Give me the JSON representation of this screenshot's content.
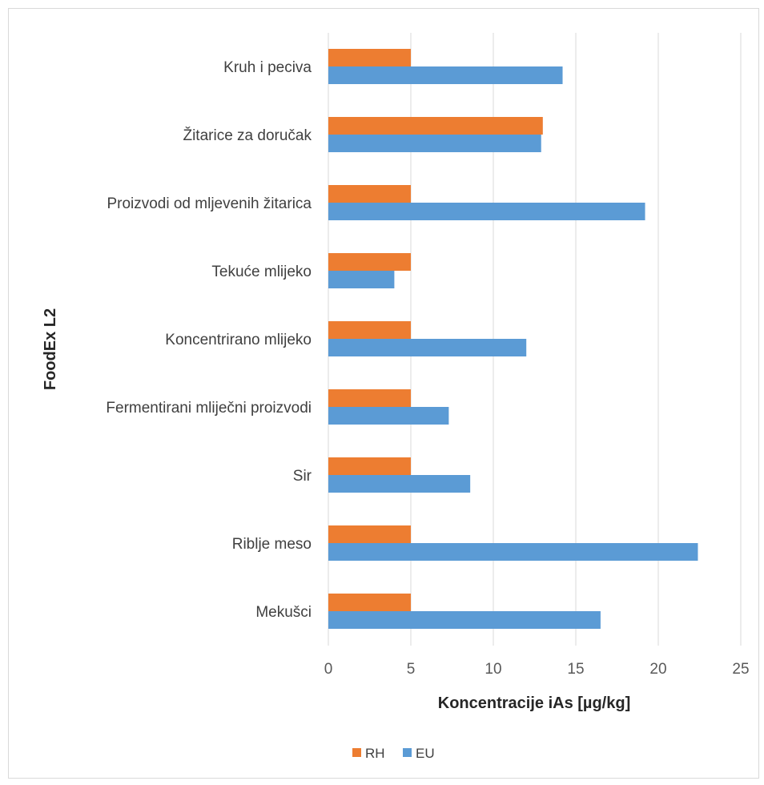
{
  "chart_data": {
    "type": "bar",
    "orientation": "horizontal",
    "categories": [
      "Kruh i peciva",
      "Žitarice za doručak",
      "Proizvodi od mljevenih žitarica",
      "Tekuće mlijeko",
      "Koncentrirano mlijeko",
      "Fermentirani mliječni proizvodi",
      "Sir",
      "Riblje meso",
      "Mekušci"
    ],
    "series": [
      {
        "name": "RH",
        "color": "#ed7d31",
        "values": [
          5,
          13,
          5,
          5,
          5,
          5,
          5,
          5,
          5
        ]
      },
      {
        "name": "EU",
        "color": "#5b9bd5",
        "values": [
          14.2,
          12.9,
          19.2,
          4,
          12,
          7.3,
          8.6,
          22.4,
          16.5
        ]
      }
    ],
    "xlabel": "Koncentracije iAs [µg/kg]",
    "ylabel": "FoodEx L2",
    "xlim": [
      0,
      25
    ],
    "xticks": [
      "0",
      "5",
      "10",
      "15",
      "20",
      "25"
    ],
    "grid": true,
    "legend_position": "bottom"
  }
}
